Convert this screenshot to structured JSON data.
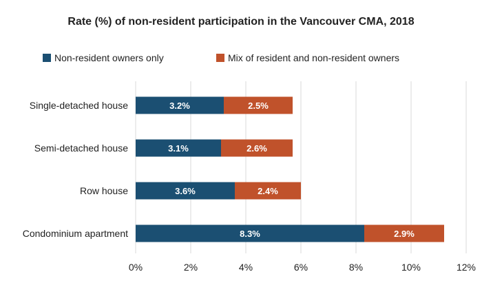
{
  "chart_data": {
    "type": "bar",
    "orientation": "horizontal",
    "stacked": true,
    "title": "Rate (%) of non-resident participation in the Vancouver CMA, 2018",
    "categories": [
      "Single-detached house",
      "Semi-detached house",
      "Row house",
      "Condominium apartment"
    ],
    "series": [
      {
        "name": "Non-resident owners only",
        "color": "#1b4f72",
        "values": [
          3.2,
          3.1,
          3.6,
          8.3
        ],
        "labels": [
          "3.2%",
          "3.1%",
          "3.6%",
          "8.3%"
        ]
      },
      {
        "name": "Mix of resident and non-resident owners",
        "color": "#c0522b",
        "values": [
          2.5,
          2.6,
          2.4,
          2.9
        ],
        "labels": [
          "2.5%",
          "2.6%",
          "2.4%",
          "2.9%"
        ]
      }
    ],
    "xlim": [
      0,
      12
    ],
    "x_ticks": [
      0,
      2,
      4,
      6,
      8,
      10,
      12
    ],
    "x_tick_labels": [
      "0%",
      "2%",
      "4%",
      "6%",
      "8%",
      "10%",
      "12%"
    ],
    "xlabel": "",
    "ylabel": "",
    "grid": "vertical",
    "legend_position": "top"
  }
}
